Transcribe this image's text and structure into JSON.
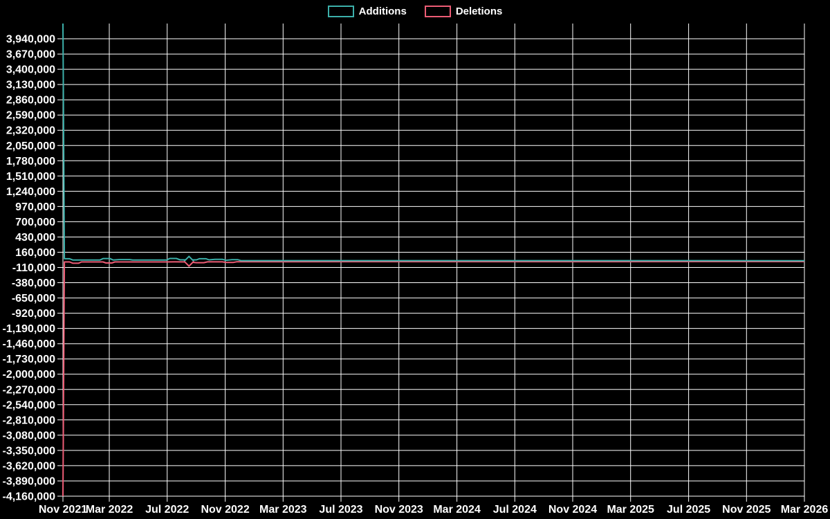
{
  "legend": {
    "items": [
      {
        "label": "Additions",
        "color": "#3cb0aa"
      },
      {
        "label": "Deletions",
        "color": "#ed5c75"
      }
    ]
  },
  "chart_data": {
    "type": "line",
    "title": "",
    "background": "#000000",
    "grid_color": "#ffffff",
    "text_color": "#ffffff",
    "grid": true,
    "legend_position": "top-center",
    "xlabel": "",
    "ylabel": "",
    "ylim": [
      -4160000,
      4210000
    ],
    "y_tick_step": 270000,
    "y_ticks": [
      3940000,
      3670000,
      3400000,
      3130000,
      2860000,
      2590000,
      2320000,
      2050000,
      1780000,
      1510000,
      1240000,
      970000,
      700000,
      430000,
      160000,
      -110000,
      -380000,
      -650000,
      -920000,
      -1190000,
      -1460000,
      -1730000,
      -2000000,
      -2270000,
      -2540000,
      -2810000,
      -3080000,
      -3350000,
      -3620000,
      -3890000,
      -4160000
    ],
    "x_ticks": [
      {
        "label": "Nov 2021",
        "pos": 0
      },
      {
        "label": "Mar 2022",
        "pos": 0.0625
      },
      {
        "label": "Jul 2022",
        "pos": 0.1406
      },
      {
        "label": "Nov 2022",
        "pos": 0.2188
      },
      {
        "label": "Mar 2023",
        "pos": 0.2969
      },
      {
        "label": "Jul 2023",
        "pos": 0.375
      },
      {
        "label": "Nov 2023",
        "pos": 0.4531
      },
      {
        "label": "Mar 2024",
        "pos": 0.5313
      },
      {
        "label": "Jul 2024",
        "pos": 0.6094
      },
      {
        "label": "Nov 2024",
        "pos": 0.6875
      },
      {
        "label": "Mar 2025",
        "pos": 0.7656
      },
      {
        "label": "Jul 2025",
        "pos": 0.8438
      },
      {
        "label": "Nov 2025",
        "pos": 0.9219
      },
      {
        "label": "Mar 2026",
        "pos": 1
      }
    ],
    "series": [
      {
        "name": "Deletions",
        "color": "#ed5c75",
        "points": [
          [
            0,
            -4160000
          ],
          [
            0.002,
            -12000
          ],
          [
            0.009,
            -12000
          ],
          [
            0.0134,
            -35000
          ],
          [
            0.021,
            -35000
          ],
          [
            0.025,
            -12000
          ],
          [
            0.054,
            -12000
          ],
          [
            0.058,
            -30000
          ],
          [
            0.066,
            -30000
          ],
          [
            0.07,
            -12000
          ],
          [
            0.14,
            -12000
          ],
          [
            0.15,
            -10000
          ],
          [
            0.17,
            -12000
          ],
          [
            0.18,
            -25000
          ],
          [
            0.19,
            -25000
          ],
          [
            0.195,
            -10000
          ],
          [
            0.215,
            -10000
          ],
          [
            0.22,
            -20000
          ],
          [
            0.23,
            -20000
          ],
          [
            0.235,
            -8000
          ],
          [
            0.3,
            -8000
          ],
          [
            1,
            -6000
          ]
        ]
      },
      {
        "name": "Additions",
        "color": "#3cb0aa",
        "points": [
          [
            0,
            4210000
          ],
          [
            0.002,
            45000
          ],
          [
            0.009,
            45000
          ],
          [
            0.0132,
            22000
          ],
          [
            0.05,
            22000
          ],
          [
            0.0544,
            48000
          ],
          [
            0.0632,
            48000
          ],
          [
            0.0676,
            22000
          ],
          [
            0.076,
            30000
          ],
          [
            0.09,
            30000
          ],
          [
            0.094,
            22000
          ],
          [
            0.14,
            22000
          ],
          [
            0.144,
            50000
          ],
          [
            0.153,
            50000
          ],
          [
            0.158,
            25000
          ],
          [
            0.17,
            25000
          ],
          [
            0.18,
            25000
          ],
          [
            0.184,
            45000
          ],
          [
            0.193,
            45000
          ],
          [
            0.197,
            25000
          ],
          [
            0.205,
            35000
          ],
          [
            0.215,
            35000
          ],
          [
            0.22,
            18000
          ],
          [
            0.228,
            28000
          ],
          [
            0.236,
            28000
          ],
          [
            0.24,
            12000
          ],
          [
            0.3,
            12000
          ],
          [
            1,
            10000
          ]
        ]
      }
    ],
    "hover_marker": {
      "pos": 0.17,
      "value": 0,
      "size": 7,
      "shape": "diamond",
      "top_color": "#3cb0aa",
      "bottom_color": "#ed5c75"
    }
  }
}
